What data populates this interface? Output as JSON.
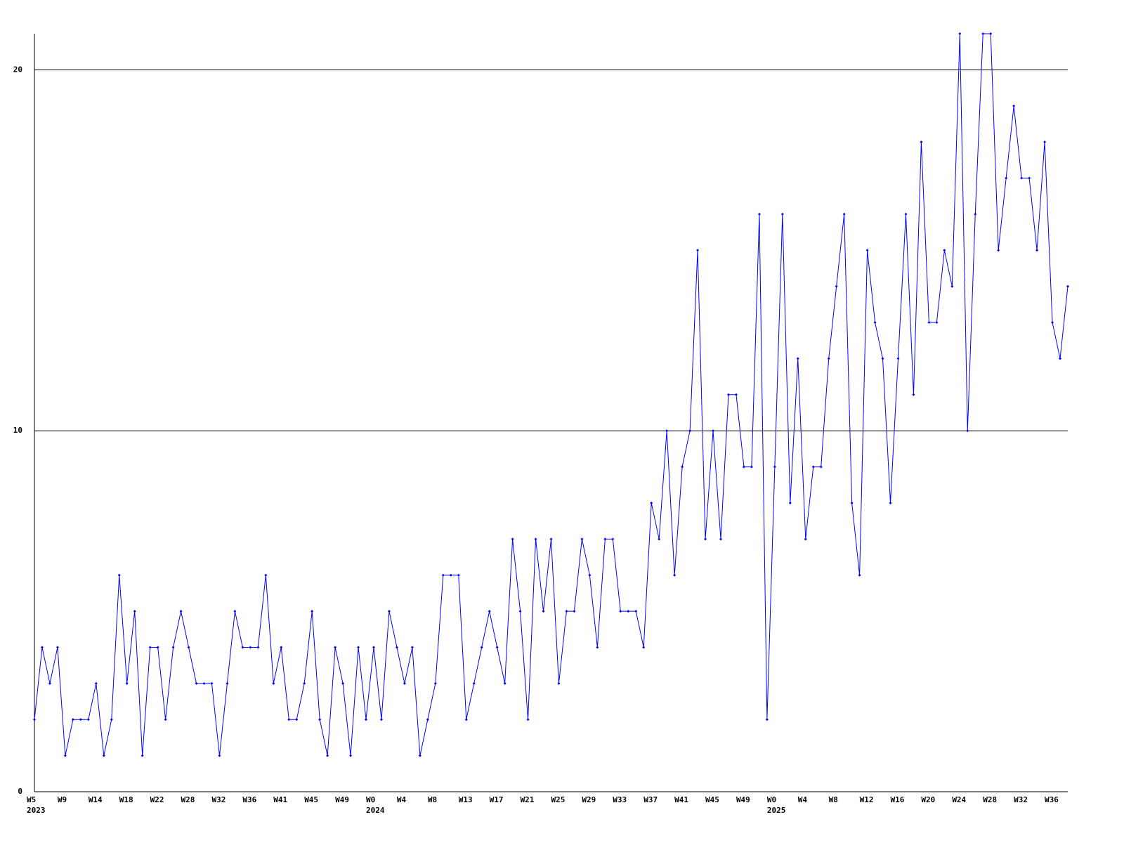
{
  "chart_data": {
    "type": "line",
    "color": "#0000ff",
    "grid": true,
    "ylim": [
      0,
      21
    ],
    "yticks": [
      0,
      10,
      20
    ],
    "categories": [
      "W5",
      null,
      null,
      null,
      "W9",
      null,
      null,
      null,
      "W14",
      null,
      null,
      null,
      "W18",
      null,
      null,
      null,
      "W22",
      null,
      null,
      null,
      "W28",
      null,
      null,
      null,
      "W32",
      null,
      null,
      null,
      "W36",
      null,
      null,
      null,
      "W41",
      null,
      null,
      null,
      "W45",
      null,
      null,
      null,
      "W49",
      null,
      null,
      null,
      "W0",
      null,
      null,
      null,
      "W4",
      null,
      null,
      null,
      "W8",
      null,
      null,
      null,
      "W13",
      null,
      null,
      null,
      "W17",
      null,
      null,
      null,
      "W21",
      null,
      null,
      null,
      "W25",
      null,
      null,
      null,
      "W29",
      null,
      null,
      null,
      "W33",
      null,
      null,
      null,
      "W37",
      null,
      null,
      null,
      "W41",
      null,
      null,
      null,
      "W45",
      null,
      null,
      null,
      "W49",
      null,
      null,
      null,
      "W0",
      null,
      null,
      null,
      "W4",
      null,
      null,
      null,
      "W8",
      null,
      null,
      null,
      "W12",
      null,
      null,
      null,
      "W16",
      null,
      null,
      null,
      "W20",
      null,
      null,
      null,
      "W24",
      null,
      null,
      null,
      "W28",
      null,
      null,
      null,
      "W32",
      null,
      null,
      null,
      "W36",
      null,
      null
    ],
    "year_labels": [
      "2023",
      null,
      null,
      null,
      null,
      null,
      null,
      null,
      null,
      null,
      null,
      null,
      null,
      null,
      null,
      null,
      null,
      null,
      null,
      null,
      null,
      null,
      null,
      null,
      null,
      null,
      null,
      null,
      null,
      null,
      null,
      null,
      null,
      null,
      null,
      null,
      null,
      null,
      null,
      null,
      null,
      null,
      null,
      null,
      "2024",
      null,
      null,
      null,
      null,
      null,
      null,
      null,
      null,
      null,
      null,
      null,
      null,
      null,
      null,
      null,
      null,
      null,
      null,
      null,
      null,
      null,
      null,
      null,
      null,
      null,
      null,
      null,
      null,
      null,
      null,
      null,
      null,
      null,
      null,
      null,
      null,
      null,
      null,
      null,
      null,
      null,
      null,
      null,
      null,
      null,
      null,
      null,
      null,
      null,
      null,
      null,
      "2025",
      null,
      null,
      null,
      null,
      null,
      null,
      null,
      null,
      null,
      null,
      null,
      null,
      null,
      null,
      null,
      null,
      null,
      null,
      null,
      null,
      null,
      null,
      null,
      null,
      null,
      null,
      null,
      null,
      null,
      null,
      null,
      null,
      null,
      null,
      null,
      null,
      null,
      null
    ],
    "values": [
      2,
      4,
      3,
      4,
      1,
      2,
      2,
      2,
      3,
      1,
      2,
      6,
      3,
      5,
      1,
      4,
      4,
      2,
      4,
      5,
      4,
      3,
      3,
      3,
      1,
      3,
      5,
      4,
      4,
      4,
      6,
      3,
      4,
      2,
      2,
      3,
      5,
      2,
      1,
      4,
      3,
      1,
      4,
      2,
      4,
      2,
      5,
      4,
      3,
      4,
      1,
      2,
      3,
      6,
      6,
      6,
      2,
      3,
      4,
      5,
      4,
      3,
      7,
      5,
      2,
      7,
      5,
      7,
      3,
      5,
      5,
      7,
      6,
      4,
      7,
      7,
      5,
      5,
      5,
      4,
      8,
      7,
      10,
      6,
      9,
      10,
      15,
      7,
      10,
      7,
      11,
      11,
      9,
      9,
      16,
      2,
      9,
      16,
      8,
      12,
      7,
      9,
      9,
      12,
      14,
      16,
      8,
      6,
      15,
      13,
      12,
      8,
      12,
      16,
      11,
      18,
      13,
      13,
      15,
      14,
      21,
      10,
      16,
      21,
      21,
      15,
      17,
      19,
      17,
      17,
      15,
      18,
      13,
      12,
      14
    ]
  }
}
